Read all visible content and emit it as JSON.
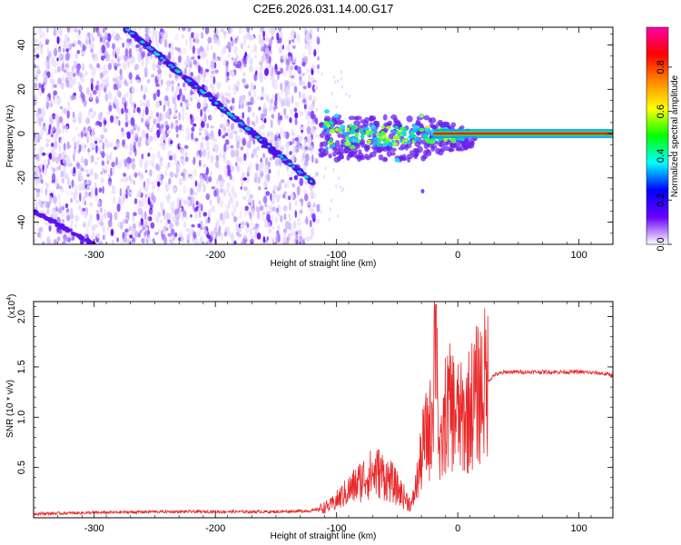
{
  "title": "C2E6.2026.031.14.00.G17",
  "chart_data": [
    {
      "type": "heatmap",
      "xlabel": "Height of straight line (km)",
      "ylabel": "Frequency (Hz)",
      "xlim": [
        -350,
        128
      ],
      "ylim": [
        -50,
        48
      ],
      "xticks": [
        "-300",
        "-200",
        "-100",
        "0",
        "100"
      ],
      "xtick_values": [
        -300,
        -200,
        -100,
        0,
        100
      ],
      "yticks": [
        "-40",
        "-20",
        "0",
        "20",
        "40"
      ],
      "ytick_values": [
        -40,
        -20,
        0,
        20,
        40
      ],
      "colorbar": {
        "label": "Normalized spectral amplitude",
        "ticks": [
          "0.0",
          "0.2",
          "0.4",
          "0.6",
          "0.8"
        ],
        "tick_values": [
          0.0,
          0.2,
          0.4,
          0.6,
          0.8
        ],
        "range": [
          0,
          0.98
        ],
        "colormap": [
          "#ffffff",
          "#6a00ff",
          "#0000ff",
          "#00ffff",
          "#00ff00",
          "#ffff00",
          "#ff8800",
          "#ff0000",
          "#ff00aa"
        ]
      },
      "features": [
        {
          "name": "descending streak",
          "x": [
            -275,
            -120
          ],
          "y": [
            48,
            -22
          ]
        },
        {
          "name": "lower streak",
          "x": [
            -350,
            -300
          ],
          "y": [
            -35,
            -50
          ]
        },
        {
          "name": "central cluster",
          "x": [
            -115,
            15
          ],
          "y": [
            -15,
            12
          ]
        },
        {
          "name": "flat line",
          "x": [
            -20,
            128
          ],
          "y": [
            0,
            0
          ]
        }
      ]
    },
    {
      "type": "line",
      "xlabel": "Height of straight line (km)",
      "ylabel": "SNR (10 * v/v)",
      "scale_note": "(x10",
      "scale_exp": "4",
      "xlim": [
        -350,
        128
      ],
      "ylim": [
        0,
        2.15
      ],
      "xticks": [
        "-300",
        "-200",
        "-100",
        "0",
        "100"
      ],
      "xtick_values": [
        -300,
        -200,
        -100,
        0,
        100
      ],
      "yticks": [
        "0.5",
        "1.0",
        "1.5",
        "2.0"
      ],
      "ytick_values": [
        0.5,
        1.0,
        1.5,
        2.0
      ],
      "series_color": "#e8282a",
      "profile": [
        [
          -350,
          0.04
        ],
        [
          -300,
          0.05
        ],
        [
          -250,
          0.06
        ],
        [
          -200,
          0.06
        ],
        [
          -150,
          0.06
        ],
        [
          -120,
          0.07
        ],
        [
          -105,
          0.12
        ],
        [
          -95,
          0.22
        ],
        [
          -85,
          0.32
        ],
        [
          -75,
          0.42
        ],
        [
          -65,
          0.45
        ],
        [
          -55,
          0.36
        ],
        [
          -45,
          0.22
        ],
        [
          -38,
          0.12
        ],
        [
          -32,
          0.45
        ],
        [
          -28,
          0.75
        ],
        [
          -22,
          0.9
        ],
        [
          -18,
          2.1
        ],
        [
          -15,
          0.5
        ],
        [
          -10,
          1.05
        ],
        [
          -5,
          1.1
        ],
        [
          0,
          1.0
        ],
        [
          5,
          0.95
        ],
        [
          10,
          1.1
        ],
        [
          15,
          1.2
        ],
        [
          22,
          1.32
        ],
        [
          30,
          1.42
        ],
        [
          40,
          1.45
        ],
        [
          60,
          1.45
        ],
        [
          80,
          1.45
        ],
        [
          100,
          1.45
        ],
        [
          115,
          1.44
        ],
        [
          128,
          1.42
        ]
      ]
    }
  ]
}
